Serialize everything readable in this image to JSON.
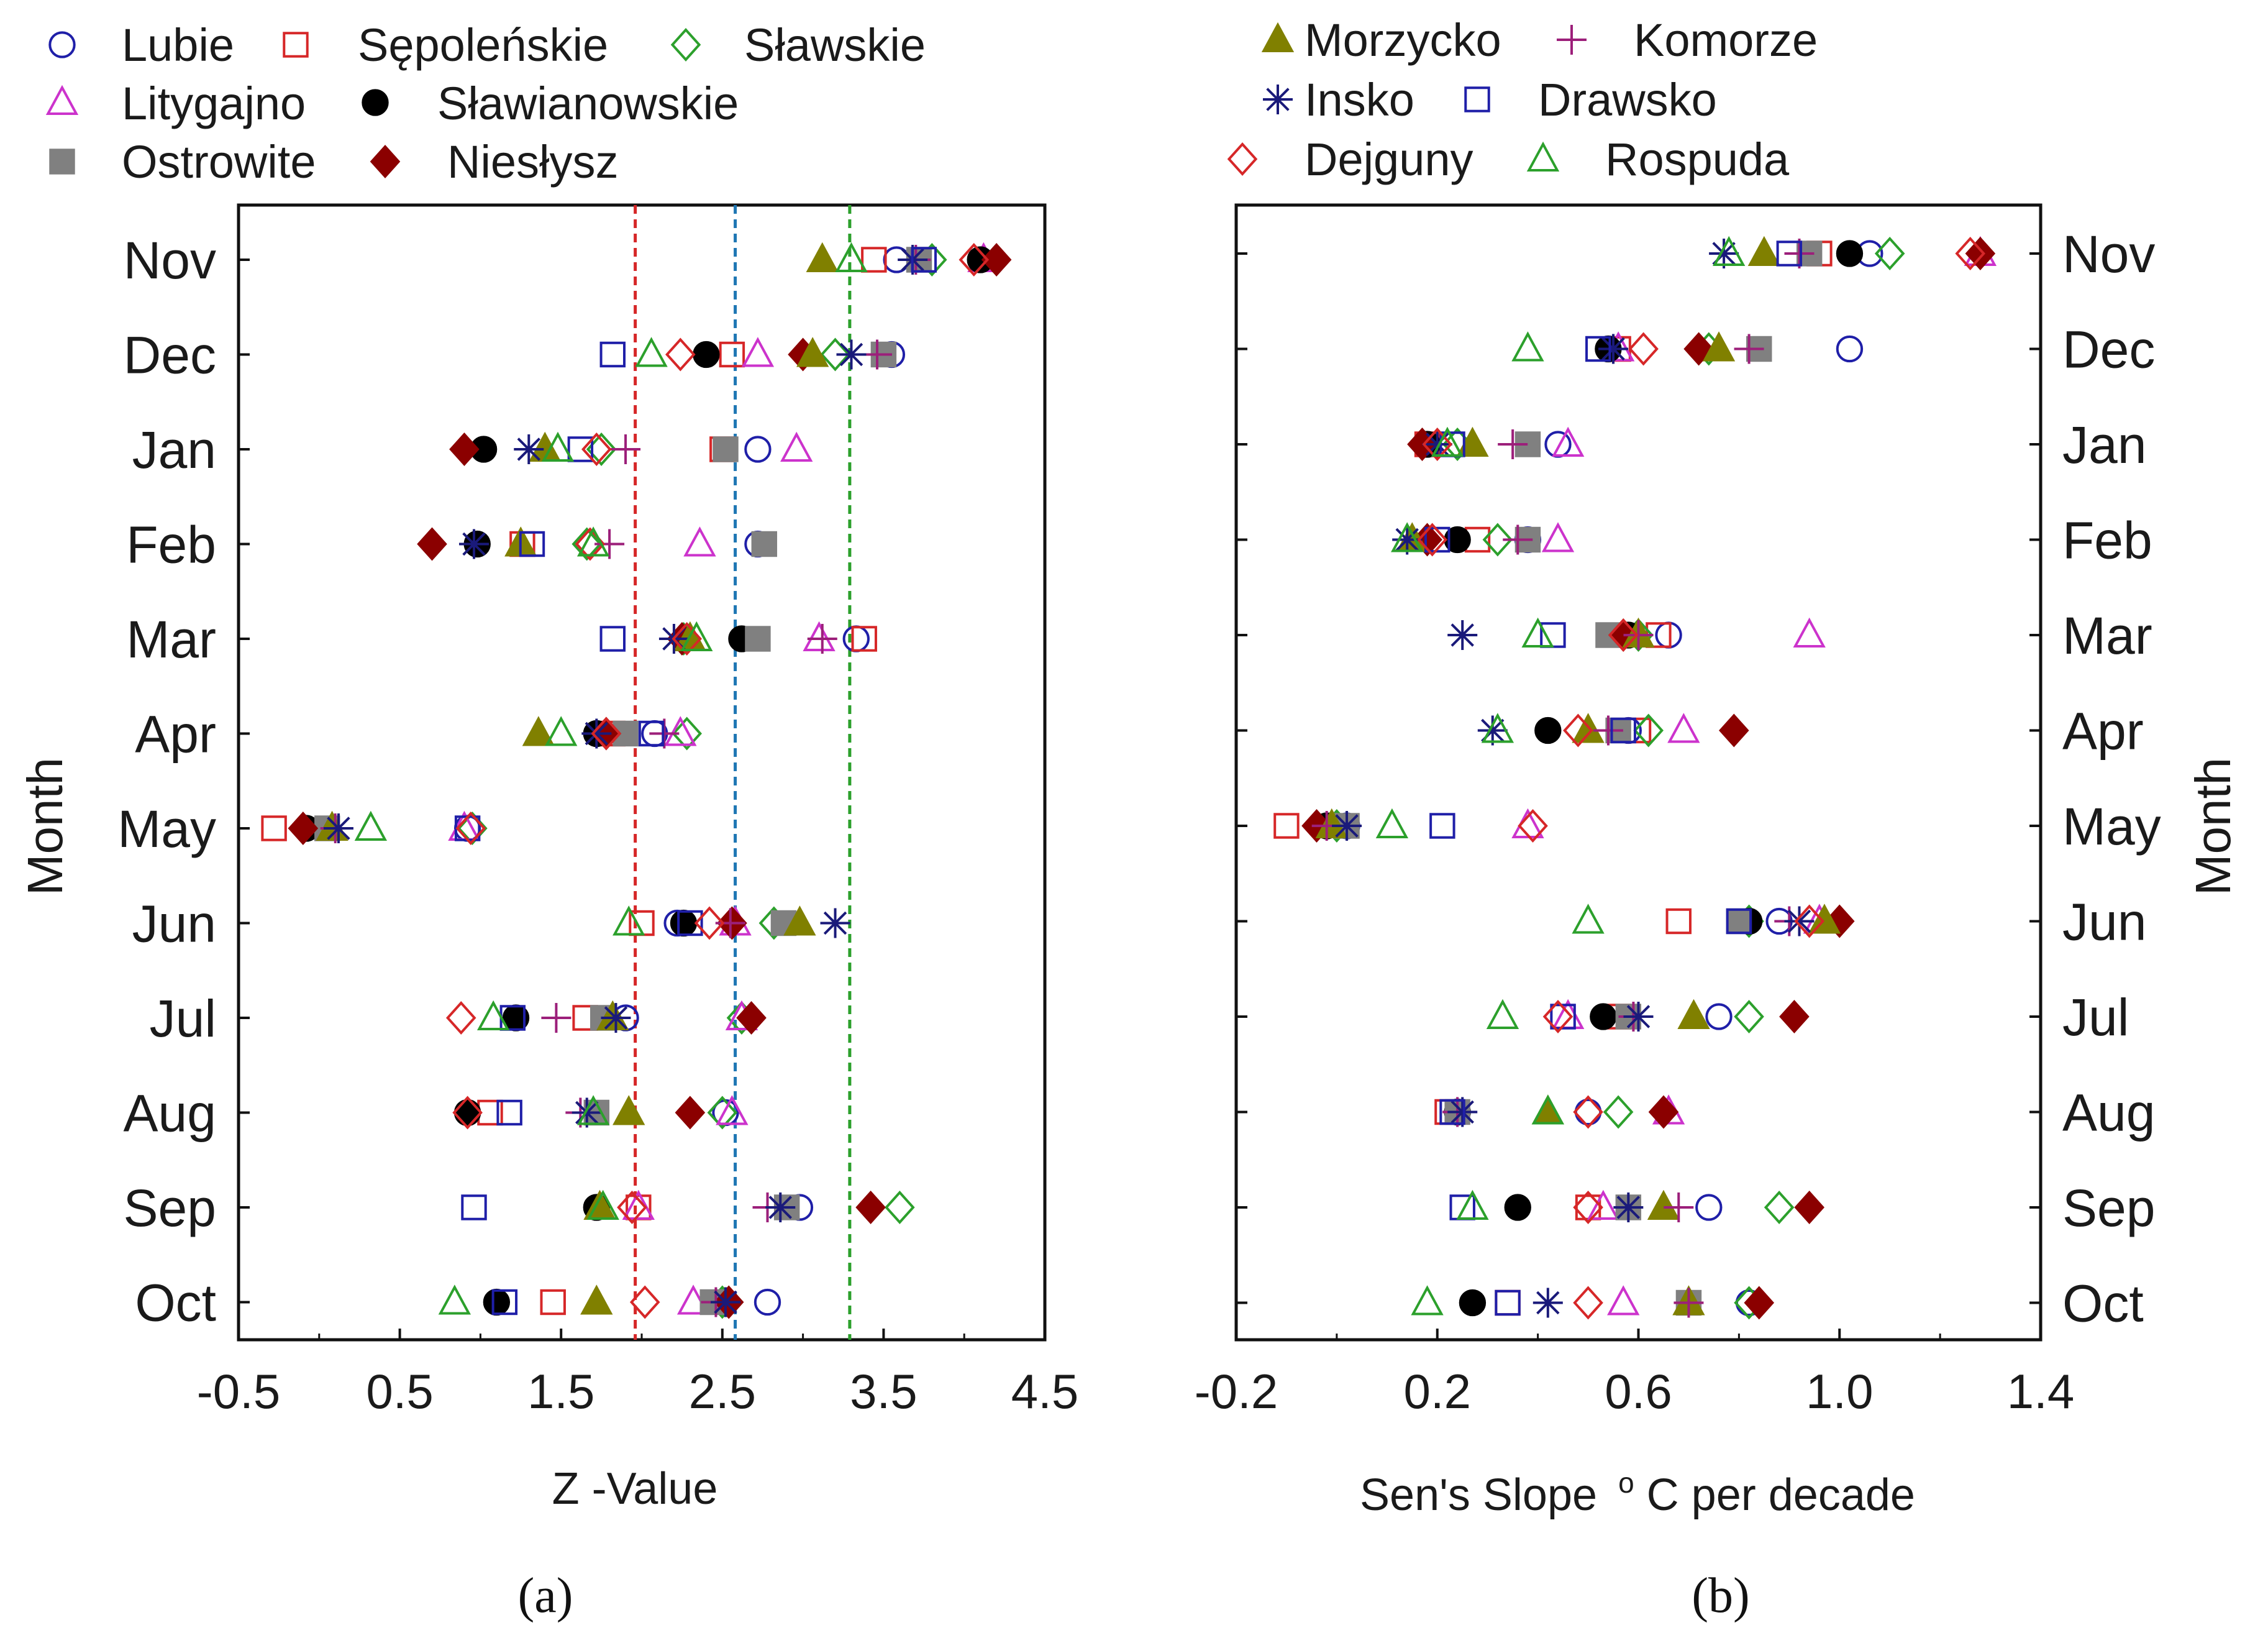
{
  "lake_styles": {
    "Lubie": {
      "marker": "circle",
      "filled": false,
      "color": "#1f1fa8"
    },
    "Sępoleńskie": {
      "marker": "square",
      "filled": false,
      "color": "#d62728"
    },
    "Sławskie": {
      "marker": "diamond",
      "filled": false,
      "color": "#2ca02c"
    },
    "Litygajno": {
      "marker": "triangle",
      "filled": false,
      "color": "#cc33cc"
    },
    "Sławianowskie": {
      "marker": "circle",
      "filled": true,
      "color": "#000000"
    },
    "Ostrowite": {
      "marker": "square",
      "filled": true,
      "color": "#808080"
    },
    "Niesłysz": {
      "marker": "diamond",
      "filled": true,
      "color": "#8b0000"
    },
    "Morzycko": {
      "marker": "triangle",
      "filled": true,
      "color": "#808000"
    },
    "Komorze": {
      "marker": "plus",
      "filled": false,
      "color": "#9c1f7a"
    },
    "Insko": {
      "marker": "star",
      "filled": false,
      "color": "#1a1a7a"
    },
    "Drawsko": {
      "marker": "square",
      "filled": false,
      "color": "#1f1fa8"
    },
    "Dejguny": {
      "marker": "diamond",
      "filled": false,
      "color": "#d62728"
    },
    "Rospuda": {
      "marker": "triangle",
      "filled": false,
      "color": "#2ca02c"
    }
  },
  "chart_data": [
    {
      "type": "scatter",
      "panel_label": "(a)",
      "xlabel": "Z -Value",
      "ylabel": "Month",
      "xlim": [
        -0.5,
        4.5
      ],
      "xticks": [
        "-0.5",
        "0.5",
        "1.5",
        "2.5",
        "3.5",
        "4.5"
      ],
      "months": [
        "Nov",
        "Dec",
        "Jan",
        "Feb",
        "Mar",
        "Apr",
        "May",
        "Jun",
        "Jul",
        "Aug",
        "Sep",
        "Oct"
      ],
      "legend": [
        "Lubie",
        "Sępoleńskie",
        "Sławskie",
        "Litygajno",
        "Sławianowskie",
        "Ostrowite",
        "Niesłysz"
      ],
      "reference_lines": [
        {
          "x": 1.96,
          "color": "#d62728"
        },
        {
          "x": 2.58,
          "color": "#1f77b4"
        },
        {
          "x": 3.29,
          "color": "#2ca02c"
        }
      ],
      "series": [
        {
          "name": "Lubie",
          "values": [
            3.58,
            3.55,
            2.72,
            2.72,
            3.33,
            2.08,
            0.92,
            2.22,
            1.9,
            2.52,
            2.98,
            2.78
          ]
        },
        {
          "name": "Sępoleńskie",
          "values": [
            3.44,
            2.56,
            2.5,
            1.26,
            3.38,
            1.82,
            -0.28,
            2.0,
            1.65,
            1.06,
            1.98,
            1.45
          ]
        },
        {
          "name": "Sławskie",
          "values": [
            3.8,
            3.2,
            1.75,
            1.66,
            2.26,
            2.28,
            0.95,
            2.82,
            2.62,
            2.5,
            3.6,
            2.5
          ]
        },
        {
          "name": "Litygajno",
          "values": [
            4.12,
            2.72,
            2.96,
            2.36,
            3.1,
            2.24,
            0.9,
            2.58,
            2.62,
            2.56,
            1.98,
            2.32
          ]
        },
        {
          "name": "Sławianowskie",
          "values": [
            4.1,
            2.4,
            1.02,
            0.98,
            2.62,
            1.72,
            -0.08,
            2.26,
            1.22,
            0.92,
            1.72,
            1.1
          ]
        },
        {
          "name": "Ostrowite",
          "values": [
            3.72,
            3.5,
            2.52,
            2.76,
            2.72,
            1.9,
            0.05,
            2.88,
            1.76,
            1.72,
            2.9,
            2.44
          ]
        },
        {
          "name": "Niesłysz",
          "values": [
            4.2,
            3.0,
            0.9,
            0.7,
            2.25,
            1.78,
            -0.1,
            2.56,
            2.68,
            2.3,
            3.42,
            2.54
          ]
        },
        {
          "name": "Morzycko",
          "values": [
            3.12,
            3.06,
            1.4,
            1.25,
            2.3,
            1.36,
            0.08,
            2.98,
            1.82,
            1.92,
            1.74,
            1.72
          ]
        },
        {
          "name": "Komorze",
          "values": [
            3.7,
            3.46,
            1.9,
            1.8,
            3.12,
            2.14,
            0.1,
            2.55,
            1.47,
            1.62,
            2.78,
            2.46
          ]
        },
        {
          "name": "Insko",
          "values": [
            3.68,
            3.3,
            1.3,
            0.96,
            2.2,
            1.72,
            0.12,
            3.2,
            1.84,
            1.66,
            2.86,
            2.52
          ]
        },
        {
          "name": "Drawsko",
          "values": [
            3.75,
            1.82,
            1.62,
            1.32,
            1.82,
            2.06,
            0.92,
            2.3,
            1.2,
            1.18,
            0.96,
            1.15
          ]
        },
        {
          "name": "Dejguny",
          "values": [
            4.06,
            2.24,
            1.72,
            1.68,
            2.28,
            1.78,
            0.94,
            2.42,
            0.88,
            0.92,
            1.94,
            2.02
          ]
        },
        {
          "name": "Rospuda",
          "values": [
            3.3,
            2.06,
            1.48,
            1.7,
            2.34,
            1.5,
            0.32,
            1.92,
            1.08,
            1.7,
            1.76,
            0.84
          ]
        }
      ]
    },
    {
      "type": "scatter",
      "panel_label": "(b)",
      "xlabel": "Sen's Slope",
      "xlabel_superscript": "o",
      "xlabel_suffix": "C per decade",
      "ylabel": "Month",
      "xlim": [
        -0.2,
        1.4
      ],
      "xticks": [
        "-0.2",
        "0.2",
        "0.6",
        "1.0",
        "1.4"
      ],
      "months": [
        "Nov",
        "Dec",
        "Jan",
        "Feb",
        "Mar",
        "Apr",
        "May",
        "Jun",
        "Jul",
        "Aug",
        "Sep",
        "Oct"
      ],
      "legend": [
        "Morzycko",
        "Komorze",
        "Insko",
        "Drawsko",
        "Dejguny",
        "Rospuda"
      ],
      "series": [
        {
          "name": "Lubie",
          "values": [
            1.06,
            1.02,
            0.44,
            0.38,
            0.66,
            0.58,
            0.02,
            0.88,
            0.76,
            0.5,
            0.74,
            0.82
          ]
        },
        {
          "name": "Sępoleńskie",
          "values": [
            0.96,
            0.56,
            0.18,
            0.28,
            0.64,
            0.6,
            -0.1,
            0.68,
            0.56,
            0.22,
            0.5,
            0.34
          ]
        },
        {
          "name": "Sławskie",
          "values": [
            1.1,
            0.74,
            0.24,
            0.32,
            0.6,
            0.62,
            0.0,
            0.82,
            0.82,
            0.56,
            0.88,
            0.82
          ]
        },
        {
          "name": "Litygajno",
          "values": [
            1.28,
            0.56,
            0.46,
            0.44,
            0.94,
            0.69,
            0.38,
            0.96,
            0.46,
            0.66,
            0.53,
            0.57
          ]
        },
        {
          "name": "Sławianowskie",
          "values": [
            1.02,
            0.54,
            0.18,
            0.24,
            0.58,
            0.42,
            -0.02,
            0.82,
            0.53,
            0.24,
            0.36,
            0.27
          ]
        },
        {
          "name": "Ostrowite",
          "values": [
            0.94,
            0.84,
            0.38,
            0.38,
            0.54,
            0.56,
            0.02,
            0.8,
            0.58,
            0.24,
            0.58,
            0.7
          ]
        },
        {
          "name": "Niesłysz",
          "values": [
            1.28,
            0.72,
            0.17,
            0.18,
            0.57,
            0.79,
            -0.04,
            1.0,
            0.91,
            0.65,
            0.94,
            0.84
          ]
        },
        {
          "name": "Morzycko",
          "values": [
            0.85,
            0.76,
            0.27,
            0.15,
            0.6,
            0.5,
            -0.01,
            0.97,
            0.71,
            0.42,
            0.65,
            0.7
          ]
        },
        {
          "name": "Komorze",
          "values": [
            0.92,
            0.82,
            0.35,
            0.36,
            0.6,
            0.54,
            -0.02,
            0.9,
            0.59,
            0.24,
            0.68,
            0.7
          ]
        },
        {
          "name": "Insko",
          "values": [
            0.77,
            0.55,
            0.2,
            0.14,
            0.25,
            0.31,
            0.02,
            0.92,
            0.6,
            0.25,
            0.58,
            0.42
          ]
        },
        {
          "name": "Drawsko",
          "values": [
            0.9,
            0.52,
            0.23,
            0.2,
            0.43,
            0.57,
            0.21,
            0.8,
            0.45,
            0.23,
            0.25,
            0.34
          ]
        },
        {
          "name": "Dejguny",
          "values": [
            1.26,
            0.61,
            0.2,
            0.19,
            0.57,
            0.48,
            0.39,
            0.94,
            0.44,
            0.5,
            0.5,
            0.5
          ]
        },
        {
          "name": "Rospuda",
          "values": [
            0.78,
            0.38,
            0.22,
            0.14,
            0.4,
            0.32,
            0.11,
            0.5,
            0.33,
            0.42,
            0.27,
            0.18
          ]
        }
      ]
    }
  ]
}
